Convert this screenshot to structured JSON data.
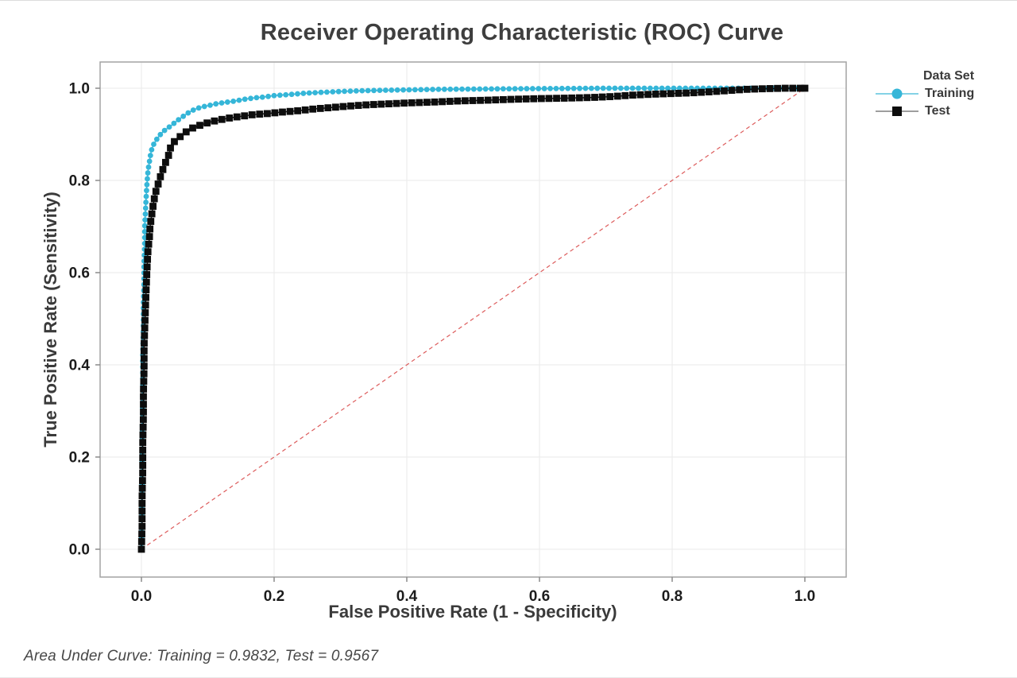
{
  "title": "Receiver Operating Characteristic (ROC) Curve",
  "footer": "Area Under Curve: Training = 0.9832, Test = 0.9567",
  "legend": {
    "title": "Data Set",
    "items": [
      {
        "label": "Training",
        "marker": "circle",
        "marker_color": "#35b6d8",
        "line_color": "#5cc4de"
      },
      {
        "label": "Test",
        "marker": "square",
        "marker_color": "#0d0d0d",
        "line_color": "#7f7f7f"
      }
    ]
  },
  "chart_data": {
    "type": "line",
    "title": "Receiver Operating Characteristic (ROC) Curve",
    "xlabel": "False Positive Rate (1 - Specificity)",
    "ylabel": "True Positive Rate (Sensitivity)",
    "xlim": [
      0,
      1
    ],
    "ylim": [
      0,
      1
    ],
    "x_ticks": [
      "0.0",
      "0.2",
      "0.4",
      "0.6",
      "0.8",
      "1.0"
    ],
    "y_ticks": [
      "0.0",
      "0.2",
      "0.4",
      "0.6",
      "0.8",
      "1.0"
    ],
    "grid": true,
    "legend_position": "right-top",
    "grid_color": "#eaeaea",
    "frame_color": "#a3a3a3",
    "tick_color": "#8a8a8a",
    "tick_label_color": "#1c1c1c",
    "reference_line": {
      "from": [
        0,
        0
      ],
      "to": [
        1,
        1
      ],
      "style": "dashed",
      "color": "#dd5c5c"
    },
    "series": [
      {
        "name": "Training",
        "auc": 0.9832,
        "color": "#35b6d8",
        "marker": "circle",
        "marker_size": 3.4,
        "marker_spacing": 7.4,
        "points": [
          [
            0,
            0
          ],
          [
            0.0005,
            0.06
          ],
          [
            0.001,
            0.13
          ],
          [
            0.001,
            0.2
          ],
          [
            0.0015,
            0.27
          ],
          [
            0.002,
            0.35
          ],
          [
            0.002,
            0.42
          ],
          [
            0.003,
            0.48
          ],
          [
            0.003,
            0.53
          ],
          [
            0.004,
            0.58
          ],
          [
            0.004,
            0.62
          ],
          [
            0.005,
            0.66
          ],
          [
            0.005,
            0.7
          ],
          [
            0.006,
            0.73
          ],
          [
            0.007,
            0.76
          ],
          [
            0.008,
            0.785
          ],
          [
            0.009,
            0.805
          ],
          [
            0.01,
            0.822
          ],
          [
            0.012,
            0.84
          ],
          [
            0.014,
            0.858
          ],
          [
            0.016,
            0.87
          ],
          [
            0.019,
            0.88
          ],
          [
            0.023,
            0.889
          ],
          [
            0.027,
            0.897
          ],
          [
            0.032,
            0.905
          ],
          [
            0.038,
            0.912
          ],
          [
            0.044,
            0.918
          ],
          [
            0.05,
            0.925
          ],
          [
            0.057,
            0.933
          ],
          [
            0.064,
            0.94
          ],
          [
            0.072,
            0.948
          ],
          [
            0.08,
            0.954
          ],
          [
            0.09,
            0.959
          ],
          [
            0.1,
            0.962
          ],
          [
            0.112,
            0.966
          ],
          [
            0.125,
            0.969
          ],
          [
            0.14,
            0.972
          ],
          [
            0.155,
            0.976
          ],
          [
            0.17,
            0.979
          ],
          [
            0.185,
            0.981
          ],
          [
            0.2,
            0.984
          ],
          [
            0.22,
            0.986
          ],
          [
            0.245,
            0.989
          ],
          [
            0.27,
            0.991
          ],
          [
            0.3,
            0.993
          ],
          [
            0.33,
            0.9945
          ],
          [
            0.36,
            0.9955
          ],
          [
            0.4,
            0.9965
          ],
          [
            0.44,
            0.9975
          ],
          [
            0.48,
            0.998
          ],
          [
            0.53,
            0.9985
          ],
          [
            0.58,
            0.999
          ],
          [
            0.64,
            0.9995
          ],
          [
            0.7,
            1
          ],
          [
            1,
            1
          ]
        ]
      },
      {
        "name": "Test",
        "auc": 0.9567,
        "color": "#0d0d0d",
        "marker": "square",
        "marker_size": 4.4,
        "marker_spacing": 9.6,
        "points": [
          [
            0,
            0
          ],
          [
            0.001,
            0.05
          ],
          [
            0.001,
            0.11
          ],
          [
            0.002,
            0.17
          ],
          [
            0.002,
            0.23
          ],
          [
            0.003,
            0.29
          ],
          [
            0.003,
            0.34
          ],
          [
            0.004,
            0.39
          ],
          [
            0.004,
            0.44
          ],
          [
            0.005,
            0.48
          ],
          [
            0.006,
            0.52
          ],
          [
            0.007,
            0.56
          ],
          [
            0.008,
            0.595
          ],
          [
            0.009,
            0.625
          ],
          [
            0.01,
            0.65
          ],
          [
            0.012,
            0.675
          ],
          [
            0.013,
            0.7
          ],
          [
            0.015,
            0.72
          ],
          [
            0.017,
            0.74
          ],
          [
            0.019,
            0.757
          ],
          [
            0.021,
            0.772
          ],
          [
            0.024,
            0.787
          ],
          [
            0.027,
            0.8
          ],
          [
            0.03,
            0.815
          ],
          [
            0.034,
            0.83
          ],
          [
            0.038,
            0.845
          ],
          [
            0.042,
            0.858
          ],
          [
            0.044,
            0.872
          ],
          [
            0.048,
            0.882
          ],
          [
            0.054,
            0.89
          ],
          [
            0.061,
            0.898
          ],
          [
            0.068,
            0.906
          ],
          [
            0.076,
            0.913
          ],
          [
            0.085,
            0.918
          ],
          [
            0.095,
            0.923
          ],
          [
            0.107,
            0.928
          ],
          [
            0.12,
            0.932
          ],
          [
            0.135,
            0.936
          ],
          [
            0.15,
            0.939
          ],
          [
            0.17,
            0.943
          ],
          [
            0.19,
            0.945
          ],
          [
            0.21,
            0.948
          ],
          [
            0.235,
            0.951
          ],
          [
            0.26,
            0.955
          ],
          [
            0.285,
            0.958
          ],
          [
            0.31,
            0.961
          ],
          [
            0.34,
            0.964
          ],
          [
            0.37,
            0.966
          ],
          [
            0.4,
            0.968
          ],
          [
            0.44,
            0.97
          ],
          [
            0.48,
            0.9725
          ],
          [
            0.52,
            0.974
          ],
          [
            0.56,
            0.976
          ],
          [
            0.6,
            0.9775
          ],
          [
            0.64,
            0.9785
          ],
          [
            0.68,
            0.98
          ],
          [
            0.71,
            0.982
          ],
          [
            0.74,
            0.985
          ],
          [
            0.77,
            0.987
          ],
          [
            0.8,
            0.9885
          ],
          [
            0.83,
            0.99
          ],
          [
            0.86,
            0.9925
          ],
          [
            0.885,
            0.995
          ],
          [
            0.91,
            0.9975
          ],
          [
            0.94,
            0.999
          ],
          [
            0.97,
            1
          ],
          [
            1,
            1
          ]
        ]
      }
    ]
  }
}
